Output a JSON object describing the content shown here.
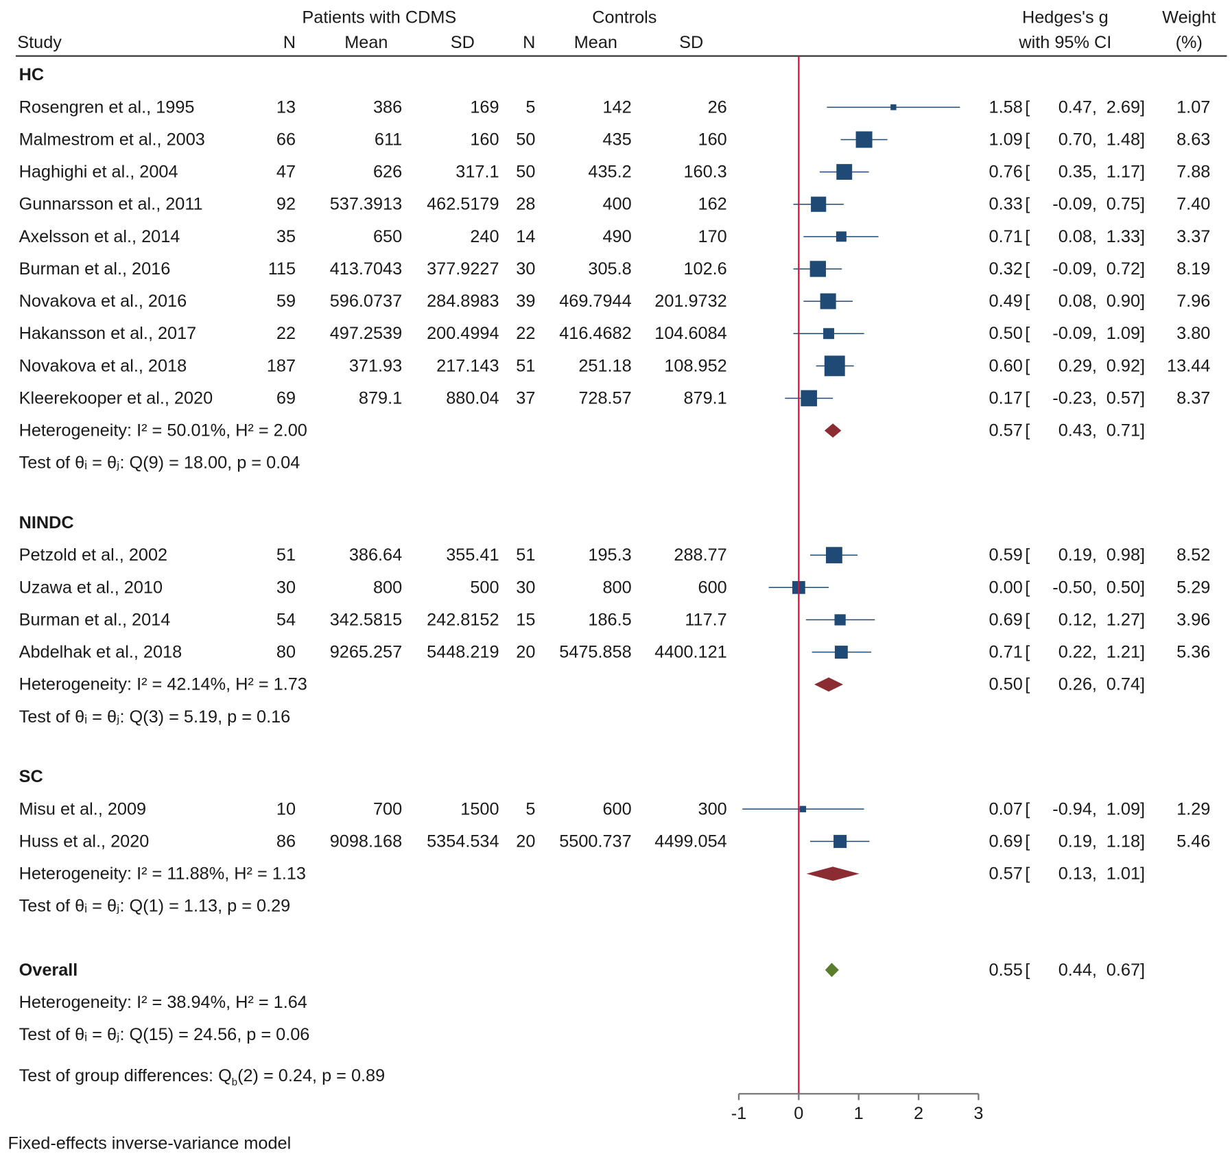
{
  "chart_data": {
    "type": "forest",
    "header": {
      "group1": "Patients with CDMS",
      "group2": "Controls",
      "study": "Study",
      "n": "N",
      "mean": "Mean",
      "sd": "SD",
      "effect1": "Hedges's g",
      "effect2": "with 95% CI",
      "weight1": "Weight",
      "weight2": "(%)"
    },
    "groups": [
      {
        "name": "HC",
        "studies": [
          {
            "study": "Rosengren et al., 1995",
            "n1": "13",
            "mean1": "386",
            "sd1": "169",
            "n2": "5",
            "mean2": "142",
            "sd2": "26",
            "g": "1.58",
            "lo": "0.47",
            "hi": "2.69",
            "weight": "1.07"
          },
          {
            "study": "Malmestrom  et al., 2003",
            "n1": "66",
            "mean1": "611",
            "sd1": "160",
            "n2": "50",
            "mean2": "435",
            "sd2": "160",
            "g": "1.09",
            "lo": "0.70",
            "hi": "1.48",
            "weight": "8.63"
          },
          {
            "study": "Haghighi et al., 2004",
            "n1": "47",
            "mean1": "626",
            "sd1": "317.1",
            "n2": "50",
            "mean2": "435.2",
            "sd2": "160.3",
            "g": "0.76",
            "lo": "0.35",
            "hi": "1.17",
            "weight": "7.88"
          },
          {
            "study": "Gunnarsson et al., 2011",
            "n1": "92",
            "mean1": "537.3913",
            "sd1": "462.5179",
            "n2": "28",
            "mean2": "400",
            "sd2": "162",
            "g": "0.33",
            "lo": "-0.09",
            "hi": "0.75",
            "weight": "7.40"
          },
          {
            "study": "Axelsson et al., 2014",
            "n1": "35",
            "mean1": "650",
            "sd1": "240",
            "n2": "14",
            "mean2": "490",
            "sd2": "170",
            "g": "0.71",
            "lo": "0.08",
            "hi": "1.33",
            "weight": "3.37"
          },
          {
            "study": "Burman et al., 2016",
            "n1": "115",
            "mean1": "413.7043",
            "sd1": "377.9227",
            "n2": "30",
            "mean2": "305.8",
            "sd2": "102.6",
            "g": "0.32",
            "lo": "-0.09",
            "hi": "0.72",
            "weight": "8.19"
          },
          {
            "study": "Novakova et al., 2016",
            "n1": "59",
            "mean1": "596.0737",
            "sd1": "284.8983",
            "n2": "39",
            "mean2": "469.7944",
            "sd2": "201.9732",
            "g": "0.49",
            "lo": "0.08",
            "hi": "0.90",
            "weight": "7.96"
          },
          {
            "study": "Hakansson et al., 2017",
            "n1": "22",
            "mean1": "497.2539",
            "sd1": "200.4994",
            "n2": "22",
            "mean2": "416.4682",
            "sd2": "104.6084",
            "g": "0.50",
            "lo": "-0.09",
            "hi": "1.09",
            "weight": "3.80"
          },
          {
            "study": "Novakova et al., 2018",
            "n1": "187",
            "mean1": "371.93",
            "sd1": "217.143",
            "n2": "51",
            "mean2": "251.18",
            "sd2": "108.952",
            "g": "0.60",
            "lo": "0.29",
            "hi": "0.92",
            "weight": "13.44"
          },
          {
            "study": "Kleerekooper et al., 2020",
            "n1": "69",
            "mean1": "879.1",
            "sd1": "880.04",
            "n2": "37",
            "mean2": "728.57",
            "sd2": "879.1",
            "g": "0.17",
            "lo": "-0.23",
            "hi": "0.57",
            "weight": "8.37"
          }
        ],
        "heterogeneity": "Heterogeneity: I² = 50.01%, H² = 2.00",
        "test": "Test of θᵢ = θⱼ: Q(9) = 18.00, p = 0.04",
        "g": "0.57",
        "lo": "0.43",
        "hi": "0.71"
      },
      {
        "name": "NINDC",
        "studies": [
          {
            "study": "Petzold et al., 2002",
            "n1": "51",
            "mean1": "386.64",
            "sd1": "355.41",
            "n2": "51",
            "mean2": "195.3",
            "sd2": "288.77",
            "g": "0.59",
            "lo": "0.19",
            "hi": "0.98",
            "weight": "8.52"
          },
          {
            "study": "Uzawa et al., 2010",
            "n1": "30",
            "mean1": "800",
            "sd1": "500",
            "n2": "30",
            "mean2": "800",
            "sd2": "600",
            "g": "0.00",
            "lo": "-0.50",
            "hi": "0.50",
            "weight": "5.29"
          },
          {
            "study": "Burman et al., 2014",
            "n1": "54",
            "mean1": "342.5815",
            "sd1": "242.8152",
            "n2": "15",
            "mean2": "186.5",
            "sd2": "117.7",
            "g": "0.69",
            "lo": "0.12",
            "hi": "1.27",
            "weight": "3.96"
          },
          {
            "study": "Abdelhak et al., 2018",
            "n1": "80",
            "mean1": "9265.257",
            "sd1": "5448.219",
            "n2": "20",
            "mean2": "5475.858",
            "sd2": "4400.121",
            "g": "0.71",
            "lo": "0.22",
            "hi": "1.21",
            "weight": "5.36"
          }
        ],
        "heterogeneity": "Heterogeneity: I² = 42.14%, H² = 1.73",
        "test": "Test of θᵢ = θⱼ: Q(3) = 5.19, p = 0.16",
        "g": "0.50",
        "lo": "0.26",
        "hi": "0.74"
      },
      {
        "name": "SC",
        "studies": [
          {
            "study": "Misu et al., 2009",
            "n1": "10",
            "mean1": "700",
            "sd1": "1500",
            "n2": "5",
            "mean2": "600",
            "sd2": "300",
            "g": "0.07",
            "lo": "-0.94",
            "hi": "1.09",
            "weight": "1.29"
          },
          {
            "study": "Huss et al., 2020",
            "n1": "86",
            "mean1": "9098.168",
            "sd1": "5354.534",
            "n2": "20",
            "mean2": "5500.737",
            "sd2": "4499.054",
            "g": "0.69",
            "lo": "0.19",
            "hi": "1.18",
            "weight": "5.46"
          }
        ],
        "heterogeneity": "Heterogeneity: I² = 11.88%, H² = 1.13",
        "test": "Test of θᵢ = θⱼ: Q(1) = 1.13, p = 0.29",
        "g": "0.57",
        "lo": "0.13",
        "hi": "1.01"
      }
    ],
    "overall": {
      "name": "Overall",
      "heterogeneity": "Heterogeneity: I² = 38.94%, H² = 1.64",
      "test": "Test of θᵢ = θⱼ: Q(15) = 24.56, p = 0.06",
      "g": "0.55",
      "lo": "0.44",
      "hi": "0.67"
    },
    "group_test": {
      "prefix": "Test of group differences: Q",
      "sub": "b",
      "suffix": "(2) = 0.24, p = 0.89"
    },
    "footnote": "Fixed-effects inverse-variance model",
    "xaxis": {
      "ticks": [
        -1,
        0,
        1,
        2,
        3
      ],
      "range": [
        -1,
        3
      ],
      "reference": 0
    },
    "colors": {
      "study": "#1f4a75",
      "subgroup": "#8b2c33",
      "overall": "#5a7d2c",
      "reference": "#d4143c",
      "axis": "#777777"
    }
  }
}
